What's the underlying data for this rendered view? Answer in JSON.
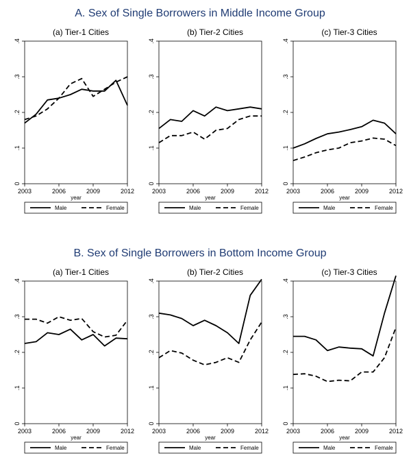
{
  "panels_title": [
    "A. Sex of Single Borrowers in Middle Income Group",
    "B. Sex of Single Borrowers in Bottom Income Group"
  ],
  "colors": {
    "title": "#1f3b73",
    "line": "#000000",
    "axis": "#000000",
    "text": "#000000"
  },
  "chart_data": [
    {
      "type": "line",
      "group": "A",
      "title": "(a) Tier-1 Cities",
      "xlabel": "year",
      "ylabel": "",
      "xlim": [
        2003,
        2012
      ],
      "ylim": [
        0,
        0.4
      ],
      "xticks": [
        2003,
        2006,
        2009,
        2012
      ],
      "yticks": [
        0,
        0.1,
        0.2,
        0.3,
        0.4
      ],
      "ytick_labels": [
        "0",
        ".1",
        ".2",
        ".3",
        ".4"
      ],
      "x": [
        2003,
        2004,
        2005,
        2006,
        2007,
        2008,
        2009,
        2010,
        2011,
        2012
      ],
      "series": [
        {
          "name": "Male",
          "style": "solid",
          "values": [
            0.17,
            0.195,
            0.235,
            0.24,
            0.25,
            0.265,
            0.26,
            0.26,
            0.29,
            0.22
          ]
        },
        {
          "name": "Female",
          "style": "dashed",
          "values": [
            0.18,
            0.19,
            0.21,
            0.24,
            0.28,
            0.295,
            0.245,
            0.265,
            0.285,
            0.3
          ]
        }
      ],
      "legend": "bottom"
    },
    {
      "type": "line",
      "group": "A",
      "title": "(b) Tier-2 Cities",
      "xlabel": "year",
      "ylabel": "",
      "xlim": [
        2003,
        2012
      ],
      "ylim": [
        0,
        0.4
      ],
      "xticks": [
        2003,
        2006,
        2009,
        2012
      ],
      "yticks": [
        0,
        0.1,
        0.2,
        0.3,
        0.4
      ],
      "ytick_labels": [
        "0",
        ".1",
        ".2",
        ".3",
        ".4"
      ],
      "x": [
        2003,
        2004,
        2005,
        2006,
        2007,
        2008,
        2009,
        2010,
        2011,
        2012
      ],
      "series": [
        {
          "name": "Male",
          "style": "solid",
          "values": [
            0.155,
            0.18,
            0.175,
            0.205,
            0.19,
            0.215,
            0.205,
            0.21,
            0.215,
            0.21
          ]
        },
        {
          "name": "Female",
          "style": "dashed",
          "values": [
            0.115,
            0.135,
            0.135,
            0.145,
            0.125,
            0.15,
            0.155,
            0.18,
            0.19,
            0.19
          ]
        }
      ],
      "legend": "bottom"
    },
    {
      "type": "line",
      "group": "A",
      "title": "(c) Tier-3 Cities",
      "xlabel": "year",
      "ylabel": "",
      "xlim": [
        2003,
        2012
      ],
      "ylim": [
        0,
        0.4
      ],
      "xticks": [
        2003,
        2006,
        2009,
        2012
      ],
      "yticks": [
        0,
        0.1,
        0.2,
        0.3,
        0.4
      ],
      "ytick_labels": [
        "0",
        ".1",
        ".2",
        ".3",
        ".4"
      ],
      "x": [
        2003,
        2004,
        2005,
        2006,
        2007,
        2008,
        2009,
        2010,
        2011,
        2012
      ],
      "series": [
        {
          "name": "Male",
          "style": "solid",
          "values": [
            0.1,
            0.112,
            0.127,
            0.14,
            0.145,
            0.152,
            0.16,
            0.178,
            0.17,
            0.14
          ]
        },
        {
          "name": "Female",
          "style": "dashed",
          "values": [
            0.065,
            0.075,
            0.087,
            0.095,
            0.1,
            0.115,
            0.12,
            0.128,
            0.125,
            0.107
          ]
        }
      ],
      "legend": "bottom"
    },
    {
      "type": "line",
      "group": "B",
      "title": "(a) Tier-1 Cities",
      "xlabel": "year",
      "ylabel": "",
      "xlim": [
        2003,
        2012
      ],
      "ylim": [
        0,
        0.4
      ],
      "xticks": [
        2003,
        2006,
        2009,
        2012
      ],
      "yticks": [
        0,
        0.1,
        0.2,
        0.3,
        0.4
      ],
      "ytick_labels": [
        "0",
        ".1",
        ".2",
        ".3",
        ".4"
      ],
      "x": [
        2003,
        2004,
        2005,
        2006,
        2007,
        2008,
        2009,
        2010,
        2011,
        2012
      ],
      "series": [
        {
          "name": "Male",
          "style": "solid",
          "values": [
            0.225,
            0.23,
            0.255,
            0.25,
            0.265,
            0.235,
            0.25,
            0.218,
            0.24,
            0.238
          ]
        },
        {
          "name": "Female",
          "style": "dashed",
          "values": [
            0.293,
            0.293,
            0.282,
            0.3,
            0.29,
            0.295,
            0.258,
            0.243,
            0.248,
            0.29
          ]
        }
      ],
      "legend": "bottom"
    },
    {
      "type": "line",
      "group": "B",
      "title": "(b) Tier-2 Cities",
      "xlabel": "year",
      "ylabel": "",
      "xlim": [
        2003,
        2012
      ],
      "ylim": [
        0,
        0.4
      ],
      "xticks": [
        2003,
        2006,
        2009,
        2012
      ],
      "yticks": [
        0,
        0.1,
        0.2,
        0.3,
        0.4
      ],
      "ytick_labels": [
        "0",
        ".1",
        ".2",
        ".3",
        ".4"
      ],
      "x": [
        2003,
        2004,
        2005,
        2006,
        2007,
        2008,
        2009,
        2010,
        2011,
        2012
      ],
      "series": [
        {
          "name": "Male",
          "style": "solid",
          "values": [
            0.31,
            0.305,
            0.295,
            0.275,
            0.29,
            0.275,
            0.255,
            0.225,
            0.36,
            0.405
          ]
        },
        {
          "name": "Female",
          "style": "dashed",
          "values": [
            0.185,
            0.205,
            0.198,
            0.178,
            0.165,
            0.172,
            0.185,
            0.172,
            0.235,
            0.285
          ]
        }
      ],
      "legend": "bottom"
    },
    {
      "type": "line",
      "group": "B",
      "title": "(c) Tier-3 Cities",
      "xlabel": "year",
      "ylabel": "",
      "xlim": [
        2003,
        2012
      ],
      "ylim": [
        0,
        0.4
      ],
      "xticks": [
        2003,
        2006,
        2009,
        2012
      ],
      "yticks": [
        0,
        0.1,
        0.2,
        0.3,
        0.4
      ],
      "ytick_labels": [
        "0",
        ".1",
        ".2",
        ".3",
        ".4"
      ],
      "x": [
        2003,
        2004,
        2005,
        2006,
        2007,
        2008,
        2009,
        2010,
        2011,
        2012
      ],
      "series": [
        {
          "name": "Male",
          "style": "solid",
          "values": [
            0.245,
            0.245,
            0.235,
            0.205,
            0.215,
            0.212,
            0.21,
            0.19,
            0.31,
            0.415
          ]
        },
        {
          "name": "Female",
          "style": "dashed",
          "values": [
            0.138,
            0.14,
            0.133,
            0.118,
            0.122,
            0.12,
            0.145,
            0.145,
            0.185,
            0.27
          ]
        }
      ],
      "legend": "bottom"
    }
  ]
}
